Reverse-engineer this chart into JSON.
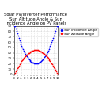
{
  "title": "Solar PV/Inverter Performance  Sun Altitude Angle & Sun Incidence Angle on PV Panels",
  "blue_label": "Sun Incidence Angle",
  "red_label": "Sun Altitude Angle",
  "x_start": -3,
  "x_end": 10,
  "x_ticks": [
    -3,
    -2,
    -1,
    0,
    1,
    2,
    3,
    4,
    5,
    6,
    7,
    8,
    9,
    10
  ],
  "ylim": [
    0,
    90
  ],
  "y_ticks": [
    0,
    10,
    20,
    30,
    40,
    50,
    60,
    70,
    80,
    90
  ],
  "blue_color": "#0000ff",
  "red_color": "#ff0000",
  "bg_color": "#ffffff",
  "grid_color": "#bbbbbb",
  "title_fontsize": 3.8,
  "legend_fontsize": 3.0,
  "tick_fontsize": 2.8,
  "n_points": 60
}
